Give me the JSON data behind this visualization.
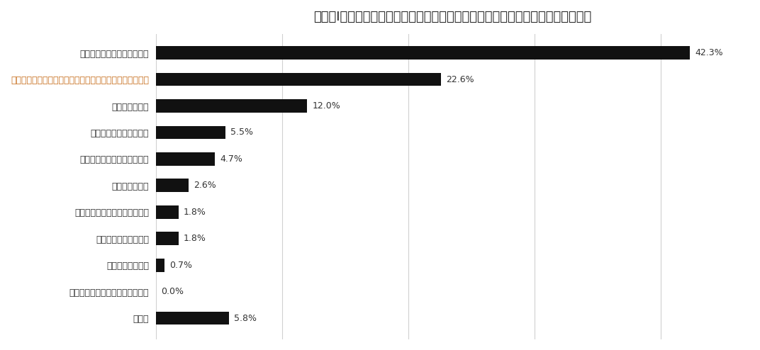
{
  "title": "「情報Ⅰ」における学校の課題をお聞かせください～「一番」課題に感じるもの～",
  "categories": [
    "大学入学共通テストへの対応",
    "指導ノウハウ（プログラミング、データサイエンスなど）",
    "指導教員の不足",
    "教科「情報」の評価方法",
    "教科「情報」の年間指導計画",
    "授業の教材選定",
    "履修年次終了後の継続的な学習",
    "履修年次をどうするか",
    "とくに課題はない",
    "「総合的な探究の時間」との連携",
    "その他"
  ],
  "values": [
    42.3,
    22.6,
    12.0,
    5.5,
    4.7,
    2.6,
    1.8,
    1.8,
    0.7,
    0.0,
    5.8
  ],
  "label_colors": [
    "#333333",
    "#333333",
    "#333333",
    "#333333",
    "#333333",
    "#333333",
    "#333333",
    "#333333",
    "#333333",
    "#c87020",
    "#333333"
  ],
  "bar_color": "#111111",
  "value_label_color": "#333333",
  "background_color": "#ffffff",
  "title_color": "#222222",
  "grid_color": "#d0d0d0",
  "figsize": [
    10.72,
    4.94
  ],
  "dpi": 100,
  "xlim": [
    0,
    47
  ],
  "bar_height": 0.5,
  "title_fontsize": 13,
  "label_fontsize": 9,
  "value_fontsize": 9
}
